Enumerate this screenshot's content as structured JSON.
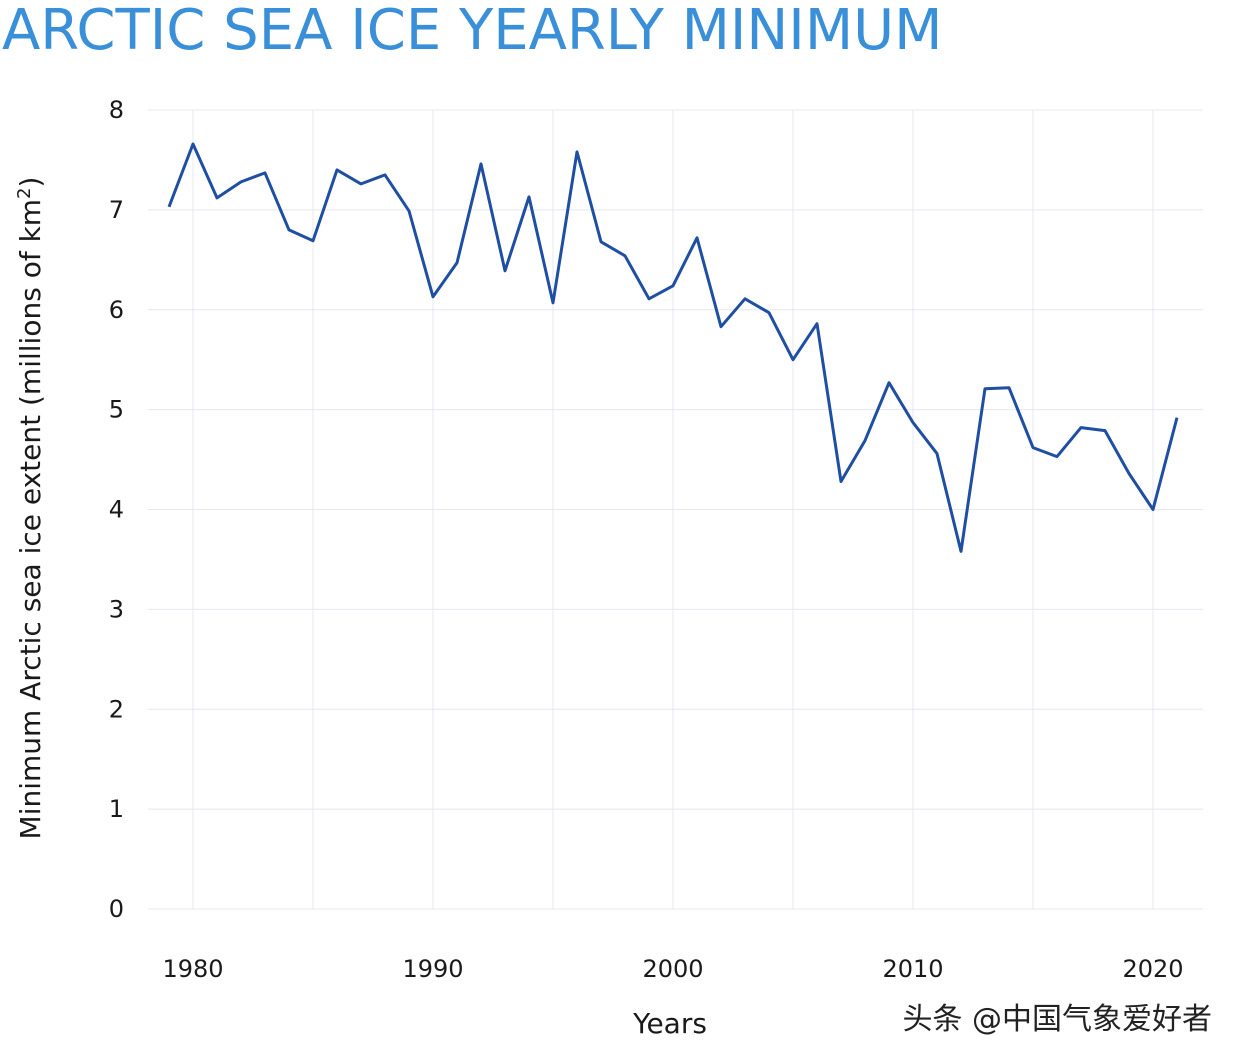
{
  "chart_data": {
    "type": "line",
    "title": "ARCTIC SEA ICE YEARLY MINIMUM",
    "xlabel": "Years",
    "ylabel_main": "Minimum Arctic sea ice extent (millions of km",
    "ylabel_sup": "2",
    "ylabel_end": ")",
    "xlim": [
      1979,
      2021
    ],
    "ylim": [
      0,
      8
    ],
    "x_ticks": [
      1980,
      1990,
      2000,
      2010,
      2020
    ],
    "y_ticks": [
      0,
      1,
      2,
      3,
      4,
      5,
      6,
      7,
      8
    ],
    "grid": true,
    "line_color": "#1f4fa3",
    "title_color": "#3a8fd9",
    "series": [
      {
        "x": [
          1979,
          1980,
          1981,
          1982,
          1983,
          1984,
          1985,
          1986,
          1987,
          1988,
          1989,
          1990,
          1991,
          1992,
          1993,
          1994,
          1995,
          1996,
          1997,
          1998,
          1999,
          2000,
          2001,
          2002,
          2003,
          2004,
          2005,
          2006,
          2007,
          2008,
          2009,
          2010,
          2011,
          2012,
          2013,
          2014,
          2015,
          2016,
          2017,
          2018,
          2019,
          2020,
          2021
        ],
        "values": [
          7.03,
          7.66,
          7.12,
          7.28,
          7.37,
          6.8,
          6.69,
          7.4,
          7.26,
          7.35,
          6.99,
          6.13,
          6.47,
          7.46,
          6.39,
          7.13,
          6.07,
          7.58,
          6.68,
          6.54,
          6.11,
          6.24,
          6.72,
          5.83,
          6.11,
          5.97,
          5.5,
          5.86,
          4.28,
          4.69,
          5.27,
          4.87,
          4.56,
          3.58,
          5.21,
          5.22,
          4.62,
          4.53,
          4.82,
          4.79,
          4.36,
          4.0,
          4.92
        ]
      }
    ]
  },
  "watermark": "头条 @中国气象爱好者"
}
